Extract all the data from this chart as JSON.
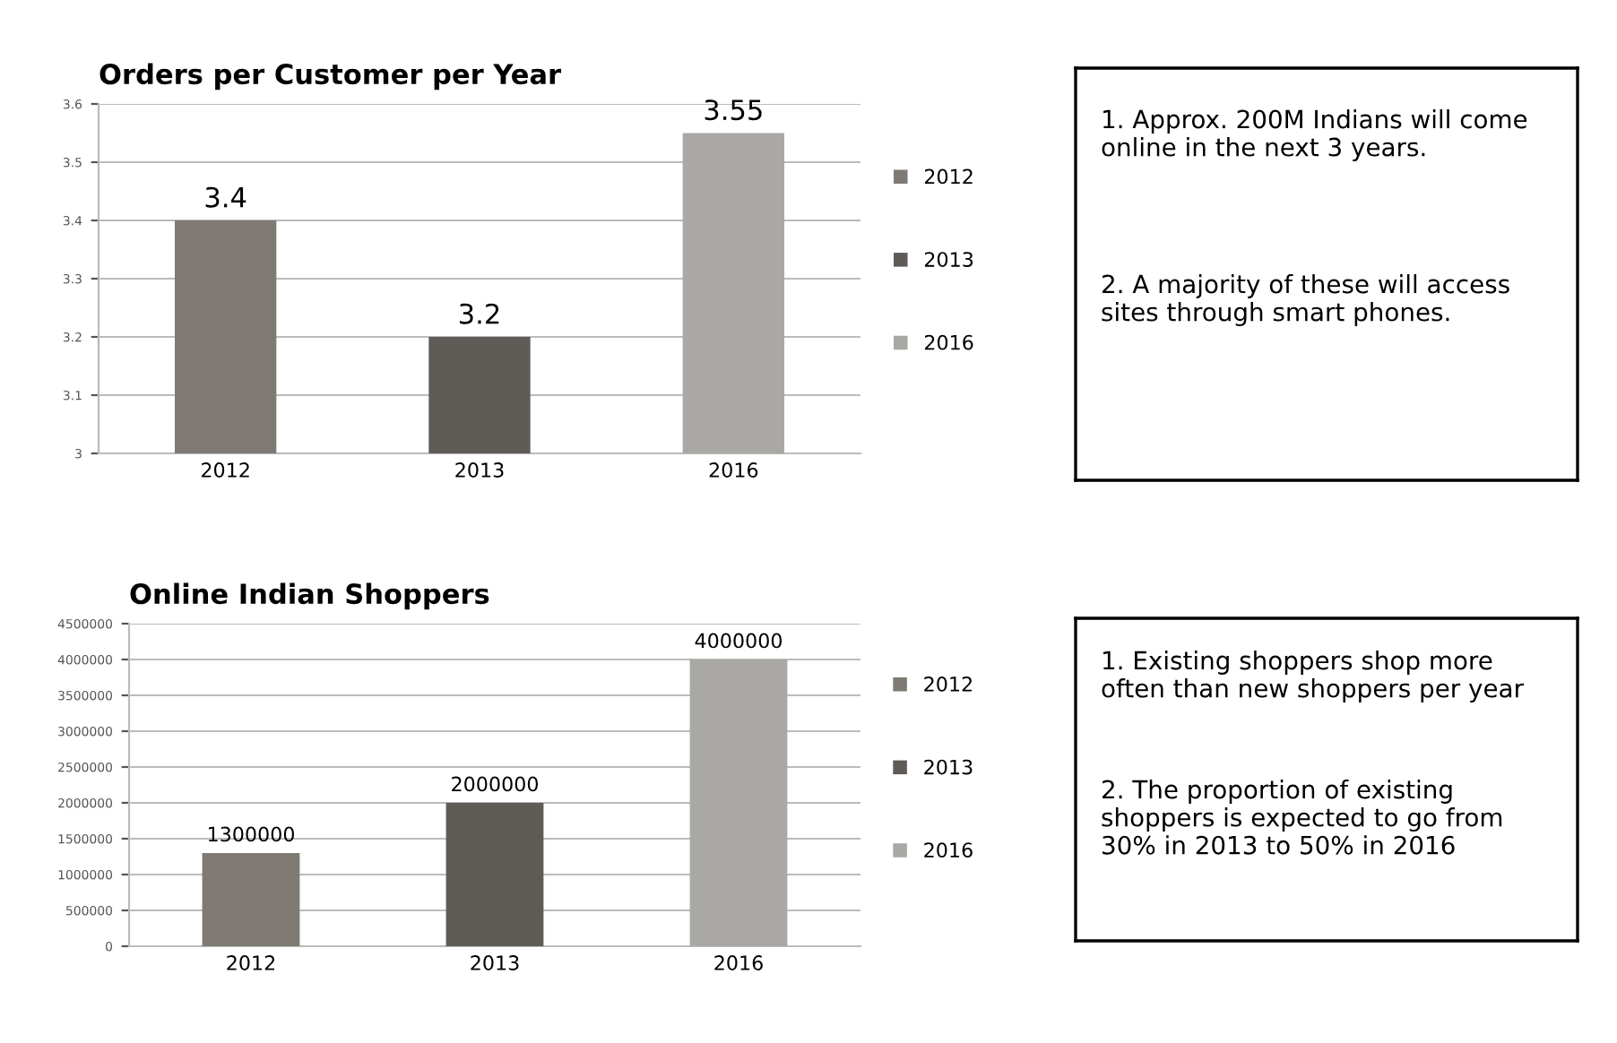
{
  "chart_data": [
    {
      "type": "bar",
      "title": "Orders per Customer per Year",
      "categories": [
        "2012",
        "2013",
        "2016"
      ],
      "series": [
        {
          "name": "2012",
          "color": "#7f7b74",
          "values": [
            3.4,
            null,
            null
          ]
        },
        {
          "name": "2013",
          "color": "#5f5c58",
          "values": [
            null,
            3.2,
            null
          ]
        },
        {
          "name": "2016",
          "color": "#aaa8a4",
          "values": [
            null,
            null,
            3.55
          ]
        }
      ],
      "ylim": [
        3,
        3.6
      ],
      "yticks": [
        3,
        3.1,
        3.2,
        3.3,
        3.4,
        3.5,
        3.6
      ],
      "grid": "y",
      "legend": "right",
      "data_labels": true
    },
    {
      "type": "other",
      "annotations": [
        "1. Approx. 200M Indians will come online in the next 3 years.",
        "2. A majority of these will access sites through smart phones."
      ]
    },
    {
      "type": "bar",
      "title": "Online Indian Shoppers",
      "categories": [
        "2012",
        "2013",
        "2016"
      ],
      "series": [
        {
          "name": "2012",
          "color": "#7f7b74",
          "values": [
            1300000,
            null,
            null
          ]
        },
        {
          "name": "2013",
          "color": "#5f5c58",
          "values": [
            null,
            2000000,
            null
          ]
        },
        {
          "name": "2016",
          "color": "#aaa8a4",
          "values": [
            null,
            null,
            4000000
          ]
        }
      ],
      "ylim": [
        0,
        4500000
      ],
      "yticks": [
        0,
        500000,
        1000000,
        1500000,
        2000000,
        2500000,
        3000000,
        3500000,
        4000000,
        4500000
      ],
      "grid": "y",
      "legend": "right",
      "data_labels": true
    },
    {
      "type": "other",
      "annotations": [
        "1. Existing shoppers shop more often than new shoppers per year",
        "2. The proportion of existing shoppers is expected to go from 30% in 2013 to 50% in 2016"
      ]
    }
  ]
}
